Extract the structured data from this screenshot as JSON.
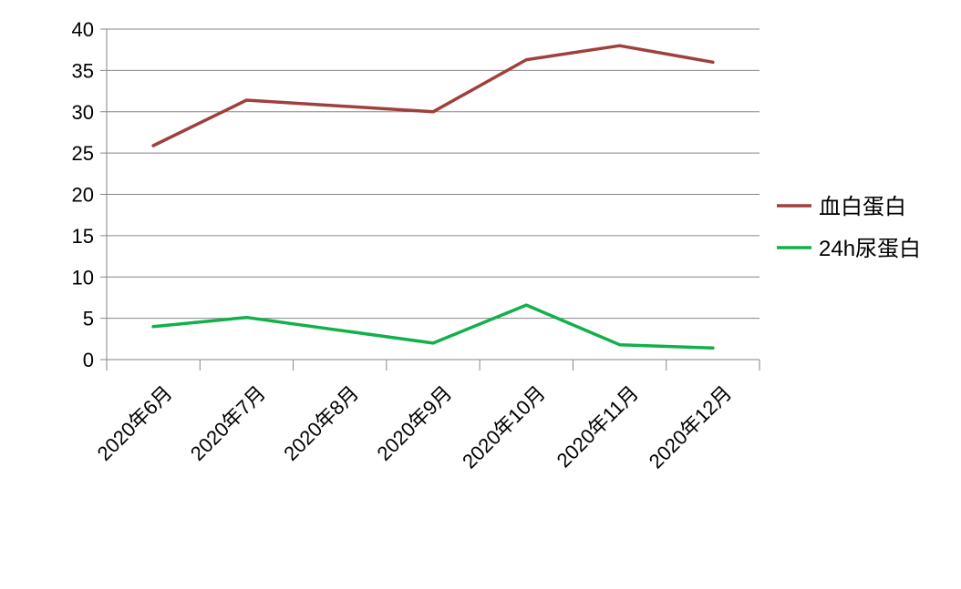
{
  "chart_data": {
    "type": "line",
    "categories": [
      "2020年6月",
      "2020年7月",
      "2020年8月",
      "2020年9月",
      "2020年10月",
      "2020年11月",
      "2020年12月"
    ],
    "series": [
      {
        "name": "血白蛋白",
        "values": [
          25.9,
          31.4,
          null,
          30.0,
          36.3,
          38.0,
          36.0
        ],
        "color": "#a0403d"
      },
      {
        "name": "24h尿蛋白",
        "values": [
          4.0,
          5.1,
          null,
          2.0,
          6.6,
          1.8,
          1.4
        ],
        "color": "#12b04a"
      }
    ],
    "ylim": [
      0,
      40
    ],
    "yticks": [
      0,
      5,
      10,
      15,
      20,
      25,
      30,
      35,
      40
    ],
    "grid": true,
    "legend": "right",
    "title": "",
    "xlabel": "",
    "ylabel": ""
  }
}
